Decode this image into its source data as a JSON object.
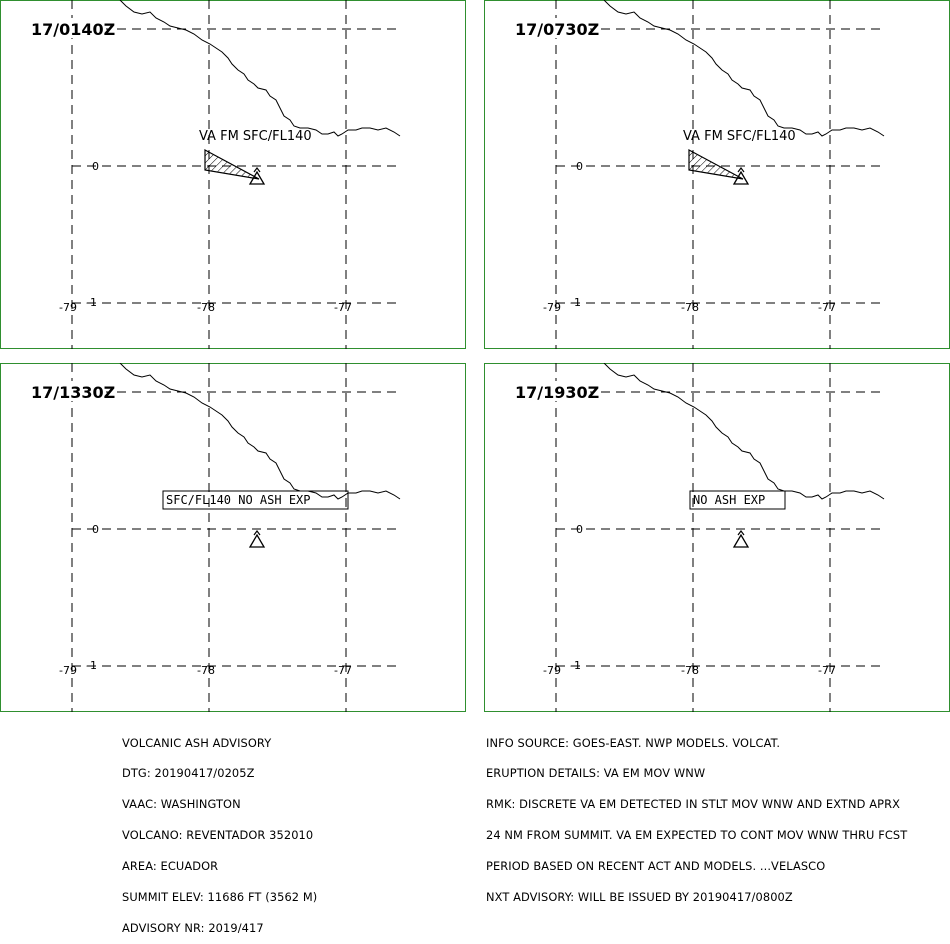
{
  "panels": [
    {
      "time": "17/0140Z",
      "label": "VA FM SFC/FL140",
      "label_type": "plain",
      "ash_shown": true
    },
    {
      "time": "17/0730Z",
      "label": "VA FM SFC/FL140",
      "label_type": "plain",
      "ash_shown": true
    },
    {
      "time": "17/1330Z",
      "label": "SFC/FL140 NO ASH EXP",
      "label_type": "boxed",
      "ash_shown": false
    },
    {
      "time": "17/1930Z",
      "label": "NO ASH EXP",
      "label_type": "boxed",
      "ash_shown": false
    }
  ],
  "axes": {
    "lon_labels": [
      "-79",
      "-78",
      "-77"
    ],
    "lat_labels": [
      "0",
      "-1"
    ]
  },
  "advisory_left": [
    "VOLCANIC ASH ADVISORY",
    "DTG: 20190417/0205Z",
    "VAAC: WASHINGTON",
    "VOLCANO: REVENTADOR 352010",
    "AREA: ECUADOR",
    "SUMMIT ELEV: 11686 FT (3562 M)",
    "ADVISORY NR: 2019/417"
  ],
  "advisory_right": [
    "INFO SOURCE: GOES-EAST. NWP MODELS. VOLCAT.",
    "ERUPTION DETAILS: VA EM MOV WNW",
    "RMK: DISCRETE VA EM DETECTED IN STLT MOV WNW AND EXTND APRX",
    "24 NM FROM SUMMIT. VA EM EXPECTED TO CONT MOV WNW THRU FCST",
    "PERIOD BASED ON RECENT ACT AND MODELS. ...VELASCO",
    "NXT ADVISORY: WILL BE ISSUED BY 20190417/0800Z"
  ],
  "colors": {
    "frame": "#2f8f2f",
    "lines": "#000000",
    "background": "#ffffff"
  },
  "icons": {
    "volcano": "volcano-icon"
  }
}
